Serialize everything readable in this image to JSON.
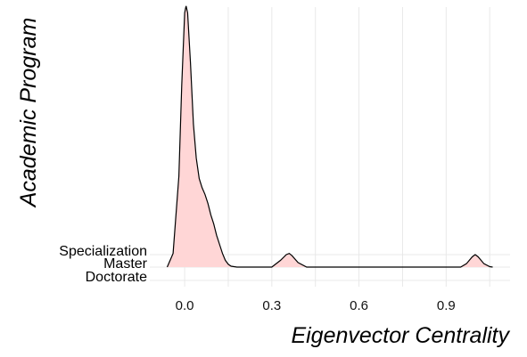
{
  "chart_data": {
    "type": "ridgeline-density",
    "title": "",
    "xlabel": "Eigenvector Centrality",
    "ylabel": "Academic Program",
    "xlim": [
      -0.12,
      1.12
    ],
    "x_ticks": [
      "0.0",
      "0.3",
      "0.6",
      "0.9"
    ],
    "x_tick_values": [
      0.0,
      0.3,
      0.6,
      0.9
    ],
    "categories": [
      "Doctorate",
      "Master",
      "Specialization"
    ],
    "grid": true,
    "legend": "none",
    "fill_color": "#ffd6d6",
    "line_color": "#000000",
    "series": [
      {
        "name": "Doctorate",
        "x": [],
        "density": []
      },
      {
        "name": "Master",
        "x": [
          -0.06,
          -0.04,
          -0.02,
          -0.01,
          0.0,
          0.005,
          0.01,
          0.02,
          0.03,
          0.04,
          0.05,
          0.06,
          0.07,
          0.08,
          0.09,
          0.1,
          0.11,
          0.12,
          0.13,
          0.14,
          0.15,
          0.16,
          0.18,
          0.2,
          0.25,
          0.3,
          0.33,
          0.35,
          0.36,
          0.37,
          0.39,
          0.42,
          0.5,
          0.7,
          0.9,
          0.95,
          0.97,
          0.99,
          1.0,
          1.01,
          1.03,
          1.05,
          1.06
        ],
        "density": [
          0.0,
          0.6,
          4.0,
          8.0,
          11.2,
          11.5,
          11.2,
          9.0,
          6.3,
          4.8,
          3.9,
          3.5,
          3.2,
          2.8,
          2.3,
          1.9,
          1.4,
          1.0,
          0.6,
          0.3,
          0.12,
          0.04,
          0.0,
          0.0,
          0.0,
          0.0,
          0.3,
          0.55,
          0.6,
          0.5,
          0.2,
          0.0,
          0.0,
          0.0,
          0.0,
          0.0,
          0.15,
          0.45,
          0.55,
          0.45,
          0.15,
          0.02,
          0.0
        ]
      },
      {
        "name": "Specialization",
        "x": [],
        "density": []
      }
    ]
  }
}
